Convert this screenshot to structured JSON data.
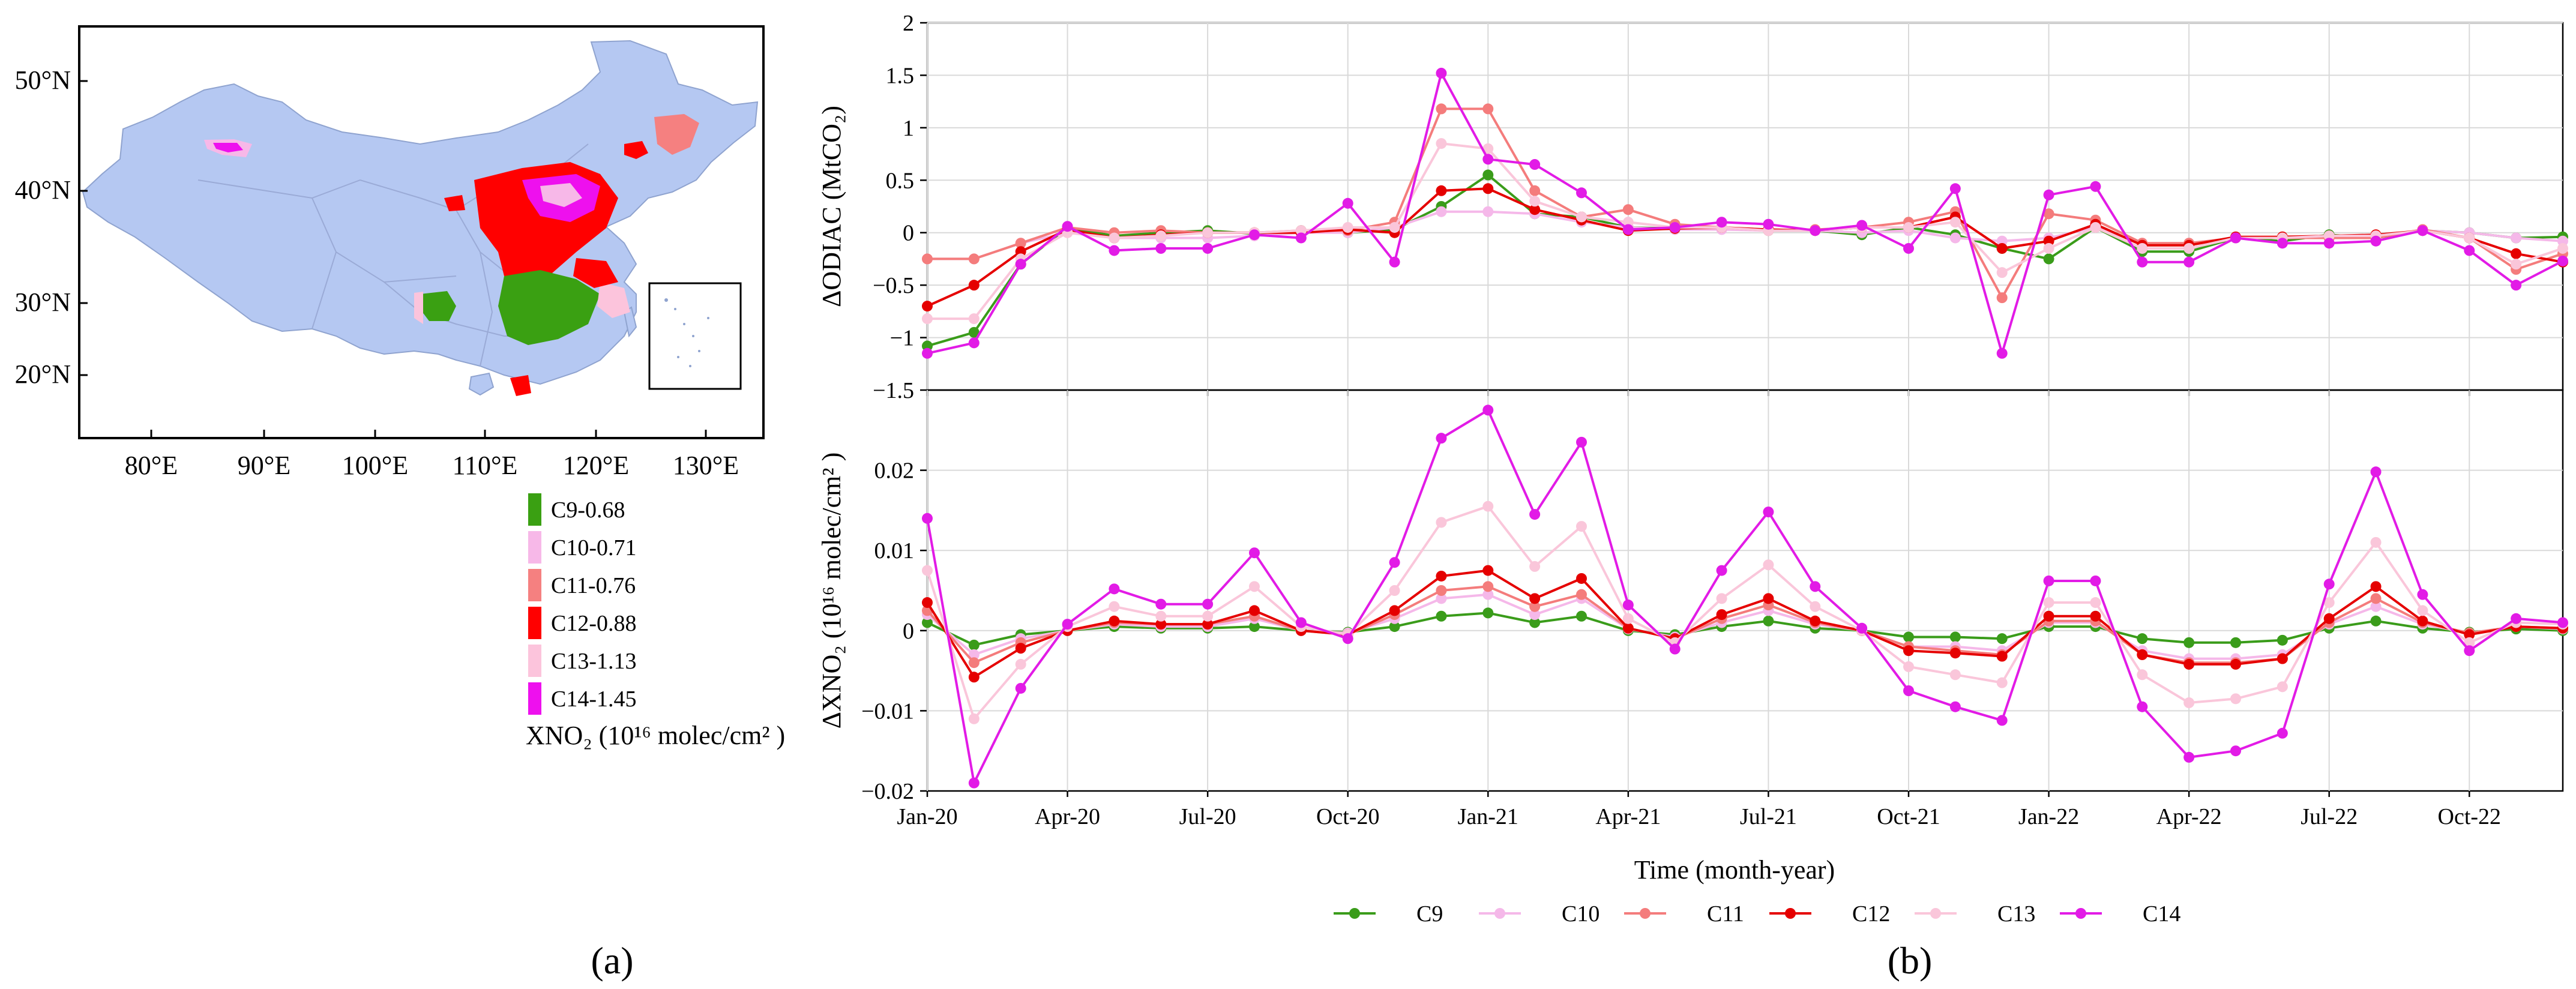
{
  "panel_a": {
    "label": "(a)",
    "lat_ticks": [
      "50°N",
      "40°N",
      "30°N",
      "20°N"
    ],
    "lon_ticks": [
      "80°E",
      "90°E",
      "100°E",
      "110°E",
      "120°E",
      "130°E"
    ],
    "legend": [
      {
        "name": "C9-0.68",
        "color": "#3aa012"
      },
      {
        "name": "C10-0.71",
        "color": "#f7b8e8"
      },
      {
        "name": "C11-0.76",
        "color": "#f58080"
      },
      {
        "name": "C12-0.88",
        "color": "#ff0000"
      },
      {
        "name": "C13-1.13",
        "color": "#fcc4dc"
      },
      {
        "name": "C14-1.45",
        "color": "#ee10ee"
      }
    ],
    "legend_title": "XNO₂ (10¹⁶ molec/cm² )",
    "land_color": "#b5c8f2"
  },
  "panel_b": {
    "label": "(b)",
    "xlabel": "Time (month-year)"
  },
  "chart_data": [
    {
      "type": "line",
      "title": "",
      "ylabel": "ΔODIAC (MtCO₂)",
      "ylim": [
        -1.5,
        2
      ],
      "yticks": [
        -1.5,
        -1,
        -0.5,
        0,
        0.5,
        1,
        1.5,
        2
      ],
      "ytick_labels": [
        "−1.5",
        "−1",
        "−0.5",
        "0",
        "0.5",
        "1",
        "1.5",
        "2"
      ],
      "xticks": [
        "Jan-20",
        "Apr-20",
        "Jul-20",
        "Oct-20",
        "Jan-21",
        "Apr-21",
        "Jul-21",
        "Oct-21",
        "Jan-22",
        "Apr-22",
        "Jul-22",
        "Oct-22"
      ],
      "x_start": "Jan-20",
      "series": [
        {
          "name": "C9",
          "color": "#3a9c1a",
          "values": [
            -1.08,
            -0.95,
            -0.3,
            0.05,
            -0.03,
            0.0,
            0.02,
            -0.01,
            0.02,
            0.0,
            0.03,
            0.25,
            0.55,
            0.18,
            0.15,
            0.05,
            0.04,
            0.05,
            0.02,
            0.02,
            -0.02,
            0.05,
            -0.02,
            -0.15,
            -0.25,
            0.05,
            -0.18,
            -0.18,
            -0.05,
            -0.08,
            -0.02,
            -0.05,
            0.02,
            0.0,
            -0.05,
            -0.04
          ]
        },
        {
          "name": "C10",
          "color": "#f5b8e9",
          "values": [
            -0.25,
            -0.25,
            -0.1,
            0.0,
            -0.05,
            -0.05,
            -0.05,
            -0.03,
            0.0,
            0.0,
            0.05,
            0.2,
            0.2,
            0.18,
            0.1,
            0.05,
            0.03,
            0.03,
            0.02,
            0.02,
            0.0,
            0.02,
            -0.05,
            -0.08,
            -0.05,
            0.05,
            -0.1,
            -0.1,
            -0.05,
            -0.05,
            -0.03,
            -0.03,
            0.02,
            0.0,
            -0.05,
            -0.08
          ]
        },
        {
          "name": "C11",
          "color": "#f47c7c",
          "values": [
            -0.25,
            -0.25,
            -0.1,
            0.05,
            0.0,
            0.02,
            0.0,
            0.0,
            0.02,
            0.02,
            0.1,
            1.18,
            1.18,
            0.4,
            0.15,
            0.22,
            0.08,
            0.05,
            0.02,
            0.03,
            0.05,
            0.1,
            0.2,
            -0.62,
            0.18,
            0.12,
            -0.1,
            -0.1,
            -0.05,
            -0.05,
            -0.05,
            -0.05,
            0.03,
            -0.05,
            -0.35,
            -0.2
          ]
        },
        {
          "name": "C12",
          "color": "#e50000",
          "values": [
            -0.7,
            -0.5,
            -0.18,
            0.03,
            -0.05,
            -0.02,
            0.0,
            0.0,
            0.0,
            0.03,
            0.0,
            0.4,
            0.42,
            0.22,
            0.12,
            0.02,
            0.04,
            0.05,
            0.03,
            0.02,
            0.05,
            0.05,
            0.15,
            -0.15,
            -0.08,
            0.08,
            -0.12,
            -0.12,
            -0.04,
            -0.04,
            -0.03,
            -0.02,
            0.02,
            -0.05,
            -0.2,
            -0.28
          ]
        },
        {
          "name": "C13",
          "color": "#fac6da",
          "values": [
            -0.82,
            -0.82,
            -0.25,
            0.0,
            -0.05,
            -0.03,
            0.0,
            0.0,
            0.02,
            0.05,
            0.05,
            0.85,
            0.8,
            0.3,
            0.15,
            0.1,
            0.05,
            0.05,
            0.02,
            0.02,
            0.05,
            0.05,
            0.1,
            -0.38,
            -0.15,
            0.05,
            -0.15,
            -0.15,
            -0.05,
            -0.05,
            -0.03,
            -0.03,
            0.02,
            -0.05,
            -0.3,
            -0.15
          ]
        },
        {
          "name": "C14",
          "color": "#e21be6",
          "values": [
            -1.15,
            -1.05,
            -0.3,
            0.06,
            -0.17,
            -0.15,
            -0.15,
            -0.02,
            -0.05,
            0.28,
            -0.28,
            1.52,
            0.7,
            0.65,
            0.38,
            0.03,
            0.05,
            0.1,
            0.08,
            0.02,
            0.07,
            -0.15,
            0.42,
            -1.15,
            0.36,
            0.44,
            -0.28,
            -0.28,
            -0.05,
            -0.1,
            -0.1,
            -0.08,
            0.02,
            -0.17,
            -0.5,
            -0.27
          ]
        }
      ]
    },
    {
      "type": "line",
      "title": "",
      "ylabel": "ΔXNO₂ (10¹⁶ molec/cm² )",
      "ylim": [
        -0.02,
        0.03
      ],
      "yticks": [
        -0.02,
        -0.01,
        0,
        0.01,
        0.02
      ],
      "ytick_labels": [
        "−0.02",
        "−0.01",
        "0",
        "0.01",
        "0.02"
      ],
      "xticks": [
        "Jan-20",
        "Apr-20",
        "Jul-20",
        "Oct-20",
        "Jan-21",
        "Apr-21",
        "Jul-21",
        "Oct-21",
        "Jan-22",
        "Apr-22",
        "Jul-22",
        "Oct-22"
      ],
      "x_start": "Jan-20",
      "series": [
        {
          "name": "C9",
          "color": "#3a9c1a",
          "values": [
            0.001,
            -0.0018,
            -0.0005,
            0.0,
            0.0005,
            0.0003,
            0.0003,
            0.0005,
            0.0,
            -0.0002,
            0.0005,
            0.0018,
            0.0022,
            0.001,
            0.0018,
            0.0,
            -0.0005,
            0.0005,
            0.0012,
            0.0003,
            0.0,
            -0.0008,
            -0.0008,
            -0.001,
            0.0005,
            0.0005,
            -0.001,
            -0.0015,
            -0.0015,
            -0.0012,
            0.0003,
            0.0012,
            0.0003,
            -0.0002,
            0.0002,
            0.0
          ]
        },
        {
          "name": "C10",
          "color": "#f5b8e9",
          "values": [
            0.002,
            -0.003,
            -0.001,
            0.0,
            0.0008,
            0.0005,
            0.0005,
            0.0015,
            0.0,
            -0.0003,
            0.0015,
            0.004,
            0.0045,
            0.002,
            0.004,
            0.0002,
            -0.0008,
            0.001,
            0.0025,
            0.0008,
            0.0,
            -0.002,
            -0.002,
            -0.0025,
            0.001,
            0.001,
            -0.0025,
            -0.0035,
            -0.0035,
            -0.003,
            0.0008,
            0.003,
            0.0008,
            -0.0003,
            0.0005,
            0.0002
          ]
        },
        {
          "name": "C11",
          "color": "#f47c7c",
          "values": [
            0.0025,
            -0.004,
            -0.0015,
            0.0,
            0.001,
            0.0008,
            0.0008,
            0.0018,
            0.0,
            -0.0005,
            0.002,
            0.005,
            0.0055,
            0.003,
            0.0045,
            0.0003,
            -0.001,
            0.0015,
            0.0032,
            0.001,
            0.0,
            -0.002,
            -0.0025,
            -0.003,
            0.0012,
            0.0012,
            -0.003,
            -0.004,
            -0.004,
            -0.0035,
            0.001,
            0.004,
            0.001,
            -0.0003,
            0.0005,
            0.0003
          ]
        },
        {
          "name": "C12",
          "color": "#e50000",
          "values": [
            0.0035,
            -0.0058,
            -0.0022,
            0.0,
            0.0012,
            0.0008,
            0.0008,
            0.0025,
            0.0,
            -0.0005,
            0.0025,
            0.0068,
            0.0075,
            0.004,
            0.0065,
            0.0003,
            -0.001,
            0.002,
            0.004,
            0.0012,
            0.0,
            -0.0025,
            -0.0028,
            -0.0032,
            0.0018,
            0.0018,
            -0.003,
            -0.0042,
            -0.0042,
            -0.0035,
            0.0015,
            0.0055,
            0.0012,
            -0.0005,
            0.0005,
            0.0003
          ]
        },
        {
          "name": "C13",
          "color": "#fac6da",
          "values": [
            0.0075,
            -0.011,
            -0.0042,
            0.0005,
            0.003,
            0.0018,
            0.0018,
            0.0055,
            0.0005,
            -0.0005,
            0.005,
            0.0135,
            0.0155,
            0.008,
            0.013,
            0.0015,
            -0.0015,
            0.004,
            0.0082,
            0.003,
            0.0,
            -0.0045,
            -0.0055,
            -0.0065,
            0.0035,
            0.0035,
            -0.0055,
            -0.009,
            -0.0085,
            -0.007,
            0.0035,
            0.011,
            0.0025,
            -0.0015,
            0.001,
            0.0008
          ]
        },
        {
          "name": "C14",
          "color": "#e21be6",
          "values": [
            0.014,
            -0.019,
            -0.0072,
            0.0008,
            0.0052,
            0.0033,
            0.0033,
            0.0097,
            0.001,
            -0.001,
            0.0085,
            0.024,
            0.0275,
            0.0145,
            0.0235,
            0.0032,
            -0.0023,
            0.0075,
            0.0148,
            0.0055,
            0.0003,
            -0.0075,
            -0.0095,
            -0.0112,
            0.0062,
            0.0062,
            -0.0095,
            -0.0158,
            -0.015,
            -0.0128,
            0.0058,
            0.0198,
            0.0045,
            -0.0025,
            0.0015,
            0.001
          ]
        }
      ]
    }
  ]
}
